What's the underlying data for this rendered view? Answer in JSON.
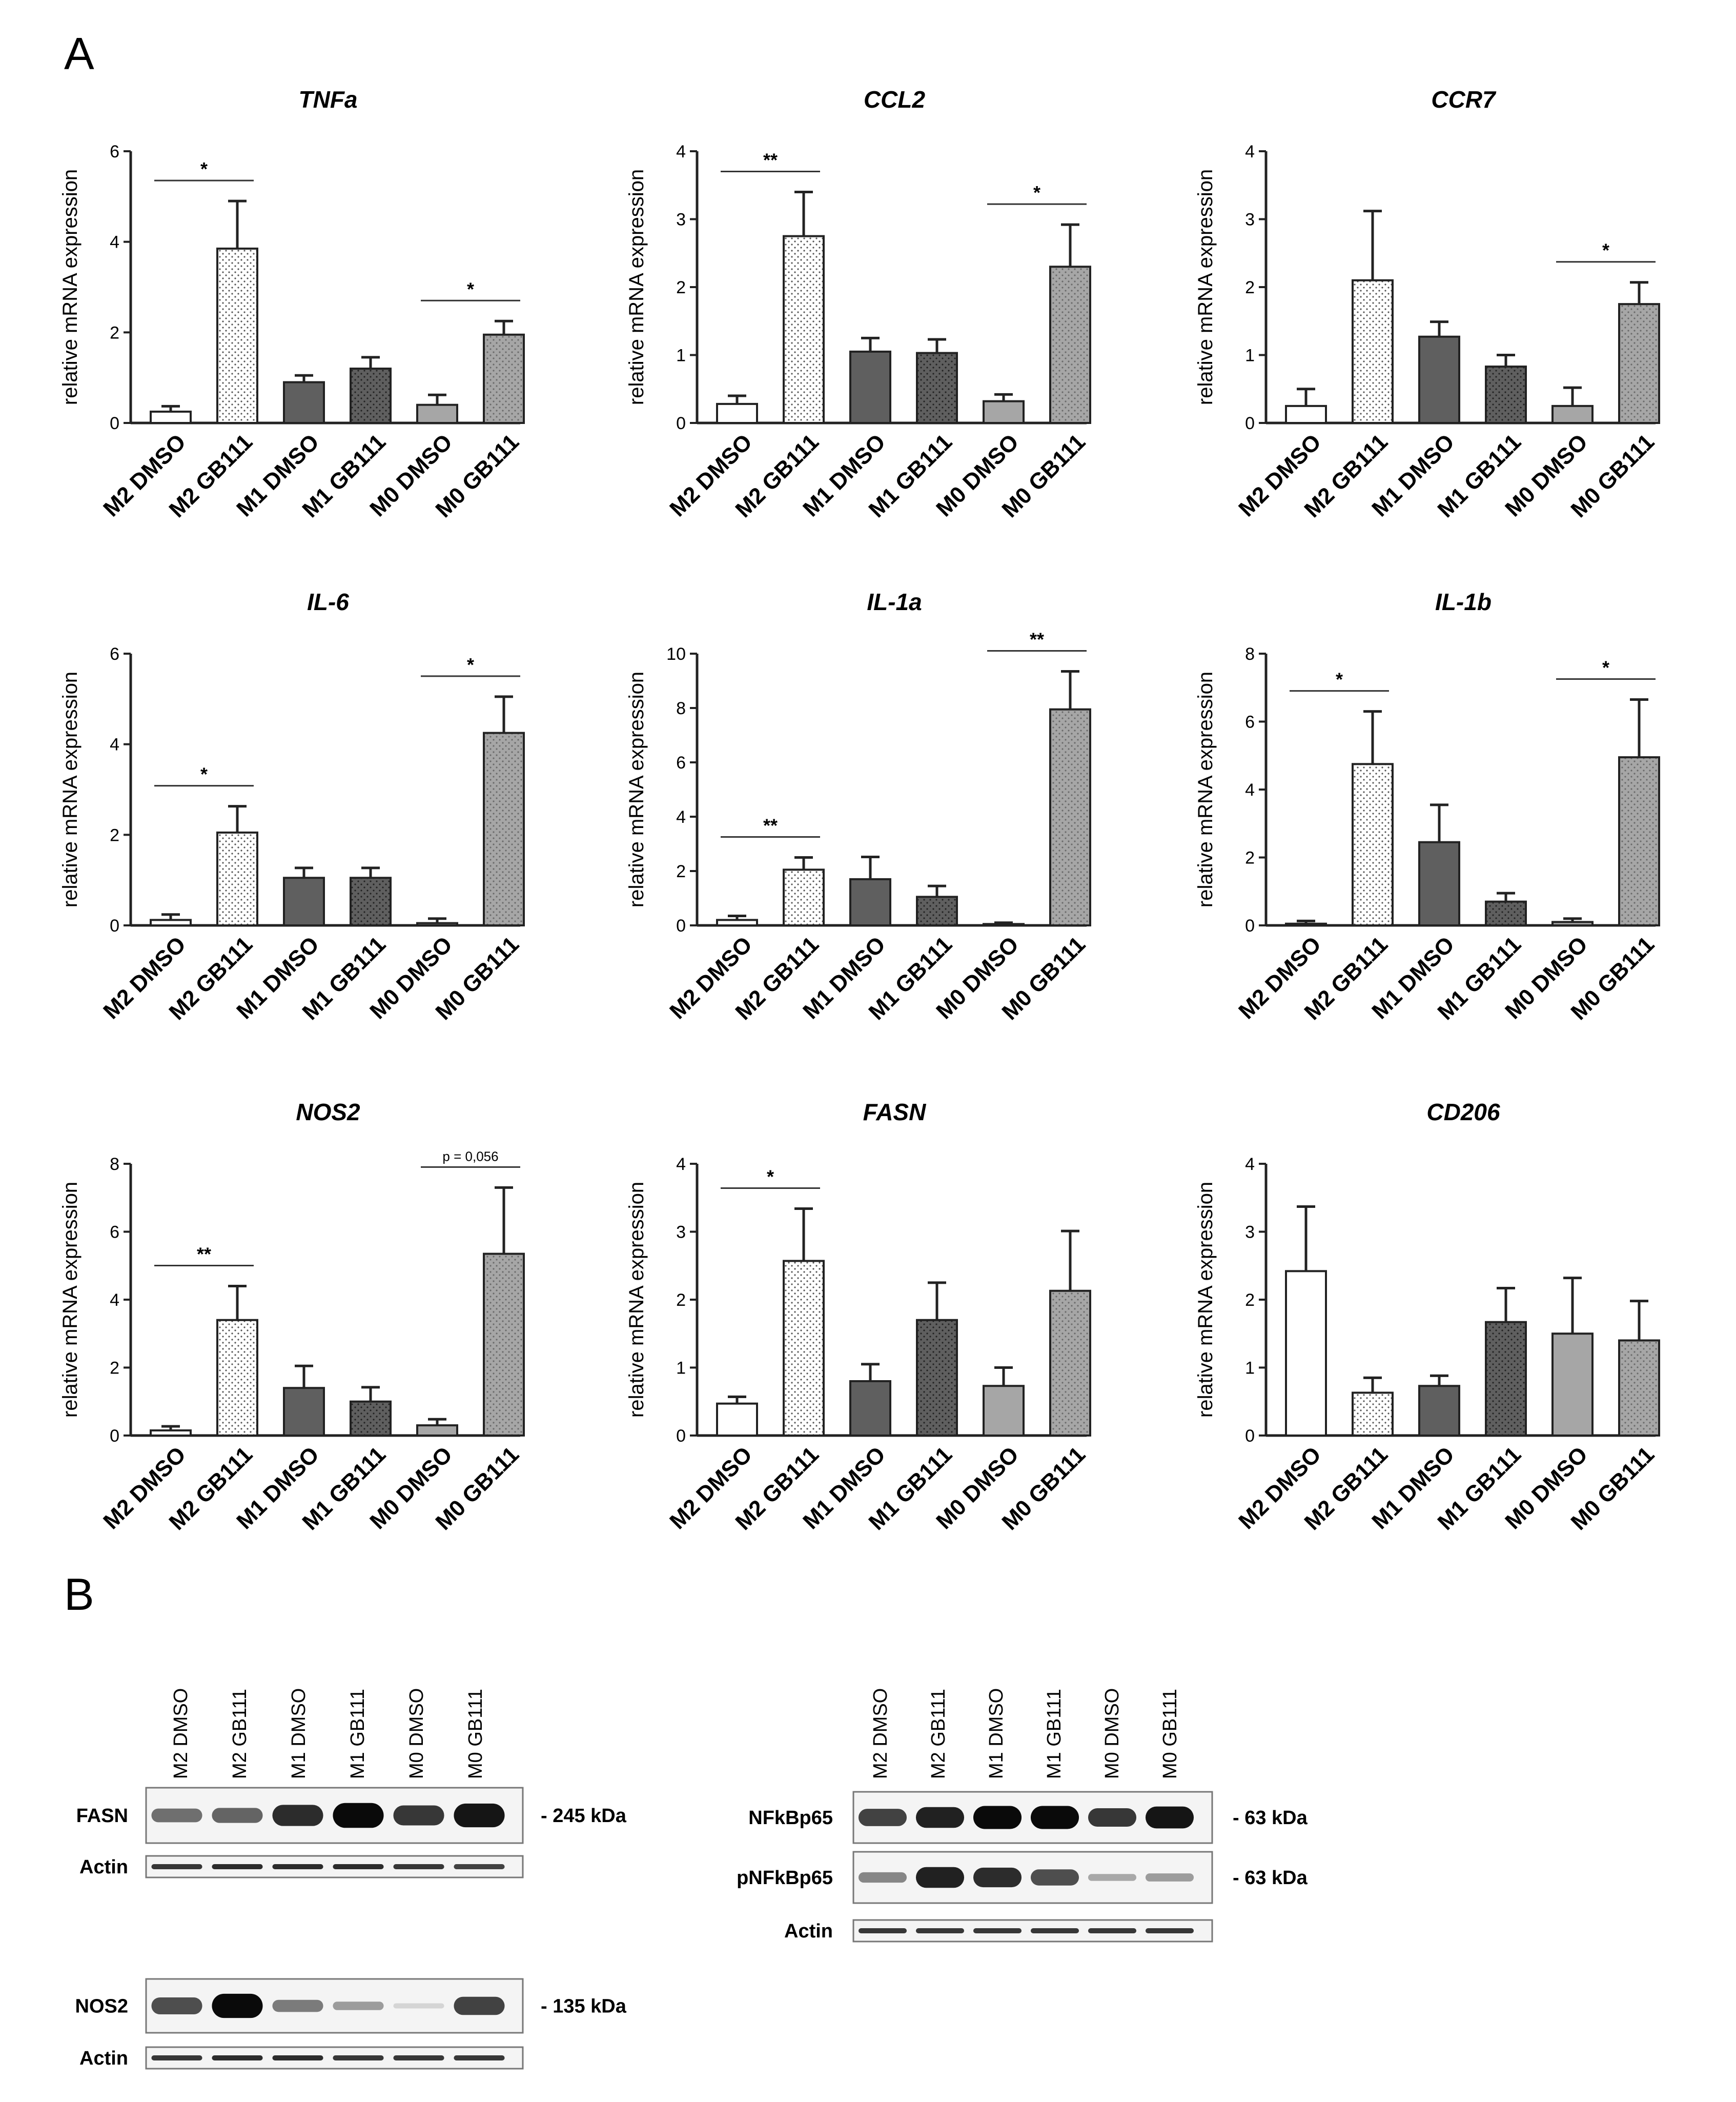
{
  "panel_a_label": "A",
  "panel_b_label": "B",
  "y_axis_label": "relative mRNA expression",
  "categories": [
    "M2 DMSO",
    "M2 GB111",
    "M1 DMSO",
    "M1 GB111",
    "M0 DMSO",
    "M0 GB111"
  ],
  "bar_styles": {
    "M2 DMSO": {
      "fill": "#ffffff",
      "pattern": "none"
    },
    "M2 GB111": {
      "fill": "#ffffff",
      "pattern": "dots"
    },
    "M1 DMSO": {
      "fill": "#5f5f5f",
      "pattern": "none"
    },
    "M1 GB111": {
      "fill": "#5f5f5f",
      "pattern": "dots"
    },
    "M0 DMSO": {
      "fill": "#a6a6a6",
      "pattern": "none"
    },
    "M0 GB111": {
      "fill": "#a6a6a6",
      "pattern": "dots"
    }
  },
  "chart_data": [
    {
      "type": "bar",
      "title": "TNFa",
      "ylabel": "relative mRNA expression",
      "ylim": [
        0,
        6
      ],
      "yticks": [
        0,
        2,
        4,
        6
      ],
      "categories": [
        "M2 DMSO",
        "M2 GB111",
        "M1 DMSO",
        "M1 GB111",
        "M0 DMSO",
        "M0 GB111"
      ],
      "values": [
        0.25,
        3.85,
        0.9,
        1.2,
        0.4,
        1.95
      ],
      "errors": [
        0.12,
        1.05,
        0.15,
        0.25,
        0.22,
        0.3
      ],
      "significance": [
        {
          "from": 0,
          "to": 1,
          "label": "*"
        },
        {
          "from": 4,
          "to": 5,
          "label": "*"
        }
      ]
    },
    {
      "type": "bar",
      "title": "CCL2",
      "ylabel": "relative mRNA expression",
      "ylim": [
        0,
        4
      ],
      "yticks": [
        0,
        1,
        2,
        3,
        4
      ],
      "categories": [
        "M2 DMSO",
        "M2 GB111",
        "M1 DMSO",
        "M1 GB111",
        "M0 DMSO",
        "M0 GB111"
      ],
      "values": [
        0.28,
        2.75,
        1.05,
        1.03,
        0.32,
        2.3
      ],
      "errors": [
        0.12,
        0.65,
        0.2,
        0.2,
        0.1,
        0.62
      ],
      "significance": [
        {
          "from": 0,
          "to": 1,
          "label": "**"
        },
        {
          "from": 4,
          "to": 5,
          "label": "*"
        }
      ]
    },
    {
      "type": "bar",
      "title": "CCR7",
      "ylabel": "relative mRNA expression",
      "ylim": [
        0,
        4
      ],
      "yticks": [
        0,
        1,
        2,
        3,
        4
      ],
      "categories": [
        "M2 DMSO",
        "M2 GB111",
        "M1 DMSO",
        "M1 GB111",
        "M0 DMSO",
        "M0 GB111"
      ],
      "values": [
        0.25,
        2.1,
        1.27,
        0.83,
        0.25,
        1.75
      ],
      "errors": [
        0.25,
        1.02,
        0.22,
        0.17,
        0.27,
        0.32
      ],
      "significance": [
        {
          "from": 4,
          "to": 5,
          "label": "*"
        }
      ]
    },
    {
      "type": "bar",
      "title": "IL-6",
      "ylabel": "relative mRNA expression",
      "ylim": [
        0,
        6
      ],
      "yticks": [
        0,
        2,
        4,
        6
      ],
      "categories": [
        "M2 DMSO",
        "M2 GB111",
        "M1 DMSO",
        "M1 GB111",
        "M0 DMSO",
        "M0 GB111"
      ],
      "values": [
        0.12,
        2.05,
        1.05,
        1.05,
        0.05,
        4.25
      ],
      "errors": [
        0.12,
        0.58,
        0.22,
        0.22,
        0.1,
        0.8
      ],
      "significance": [
        {
          "from": 0,
          "to": 1,
          "label": "*"
        },
        {
          "from": 4,
          "to": 5,
          "label": "*"
        }
      ]
    },
    {
      "type": "bar",
      "title": "IL-1a",
      "ylabel": "relative mRNA expression",
      "ylim": [
        0,
        10
      ],
      "yticks": [
        0,
        2,
        4,
        6,
        8,
        10
      ],
      "categories": [
        "M2 DMSO",
        "M2 GB111",
        "M1 DMSO",
        "M1 GB111",
        "M0 DMSO",
        "M0 GB111"
      ],
      "values": [
        0.2,
        2.05,
        1.7,
        1.05,
        0.05,
        7.95
      ],
      "errors": [
        0.15,
        0.45,
        0.82,
        0.4,
        0.05,
        1.4
      ],
      "significance": [
        {
          "from": 0,
          "to": 1,
          "label": "**"
        },
        {
          "from": 4,
          "to": 5,
          "label": "**"
        }
      ]
    },
    {
      "type": "bar",
      "title": "IL-1b",
      "ylabel": "relative mRNA expression",
      "ylim": [
        0,
        8
      ],
      "yticks": [
        0,
        2,
        4,
        6,
        8
      ],
      "categories": [
        "M2 DMSO",
        "M2 GB111",
        "M1 DMSO",
        "M1 GB111",
        "M0 DMSO",
        "M0 GB111"
      ],
      "values": [
        0.05,
        4.75,
        2.45,
        0.7,
        0.1,
        4.95
      ],
      "errors": [
        0.08,
        1.55,
        1.1,
        0.25,
        0.1,
        1.7
      ],
      "significance": [
        {
          "from": 0,
          "to": 1,
          "label": "*"
        },
        {
          "from": 4,
          "to": 5,
          "label": "*"
        }
      ]
    },
    {
      "type": "bar",
      "title": "NOS2",
      "ylabel": "relative mRNA expression",
      "ylim": [
        0,
        8
      ],
      "yticks": [
        0,
        2,
        4,
        6,
        8
      ],
      "categories": [
        "M2 DMSO",
        "M2 GB111",
        "M1 DMSO",
        "M1 GB111",
        "M0 DMSO",
        "M0 GB111"
      ],
      "values": [
        0.15,
        3.4,
        1.4,
        1.0,
        0.3,
        5.35
      ],
      "errors": [
        0.12,
        1.0,
        0.65,
        0.42,
        0.18,
        1.95
      ],
      "significance": [
        {
          "from": 0,
          "to": 1,
          "label": "**"
        },
        {
          "from": 4,
          "to": 5,
          "label": "p = 0,056"
        }
      ]
    },
    {
      "type": "bar",
      "title": "FASN",
      "ylabel": "relative mRNA expression",
      "ylim": [
        0,
        4
      ],
      "yticks": [
        0,
        1,
        2,
        3,
        4
      ],
      "categories": [
        "M2 DMSO",
        "M2 GB111",
        "M1 DMSO",
        "M1 GB111",
        "M0 DMSO",
        "M0 GB111"
      ],
      "values": [
        0.47,
        2.57,
        0.8,
        1.7,
        0.73,
        2.13
      ],
      "errors": [
        0.1,
        0.77,
        0.25,
        0.55,
        0.27,
        0.88
      ],
      "significance": [
        {
          "from": 0,
          "to": 1,
          "label": "*"
        }
      ]
    },
    {
      "type": "bar",
      "title": "CD206",
      "ylabel": "relative mRNA expression",
      "ylim": [
        0,
        4
      ],
      "yticks": [
        0,
        1,
        2,
        3,
        4
      ],
      "categories": [
        "M2 DMSO",
        "M2 GB111",
        "M1 DMSO",
        "M1 GB111",
        "M0 DMSO",
        "M0 GB111"
      ],
      "values": [
        2.42,
        0.63,
        0.73,
        1.67,
        1.5,
        1.4
      ],
      "errors": [
        0.95,
        0.22,
        0.15,
        0.5,
        0.82,
        0.58
      ],
      "significance": []
    }
  ],
  "blots": {
    "left_lanes": [
      "M2 DMSO",
      "M2 GB111",
      "M1 DMSO",
      "M1 GB111",
      "M0 DMSO",
      "M0 GB111"
    ],
    "right_lanes": [
      "M2 DMSO",
      "M2 GB111",
      "M1 DMSO",
      "M1 GB111",
      "M0 DMSO",
      "M0 GB111"
    ],
    "left_group1": [
      {
        "protein": "FASN",
        "kda": "- 245 kDa",
        "intensity": [
          0.55,
          0.6,
          0.85,
          1.0,
          0.8,
          0.95
        ]
      },
      {
        "protein": "Actin",
        "kda": "",
        "intensity": [
          0.8,
          0.85,
          0.85,
          0.85,
          0.8,
          0.75
        ]
      }
    ],
    "left_group2": [
      {
        "protein": "NOS2",
        "kda": "- 135 kDa",
        "intensity": [
          0.7,
          1.0,
          0.5,
          0.35,
          0.1,
          0.75
        ]
      },
      {
        "protein": "Actin",
        "kda": "",
        "intensity": [
          0.8,
          0.85,
          0.85,
          0.8,
          0.8,
          0.8
        ]
      }
    ],
    "right_group": [
      {
        "protein": "NFkBp65",
        "kda": "- 63 kDa",
        "intensity": [
          0.75,
          0.9,
          1.0,
          1.0,
          0.8,
          0.95
        ]
      },
      {
        "protein": "pNFkBp65",
        "kda": "- 63 kDa",
        "intensity": [
          0.45,
          0.9,
          0.85,
          0.7,
          0.3,
          0.35
        ]
      },
      {
        "protein": "Actin",
        "kda": "",
        "intensity": [
          0.8,
          0.8,
          0.8,
          0.8,
          0.8,
          0.8
        ]
      }
    ]
  }
}
